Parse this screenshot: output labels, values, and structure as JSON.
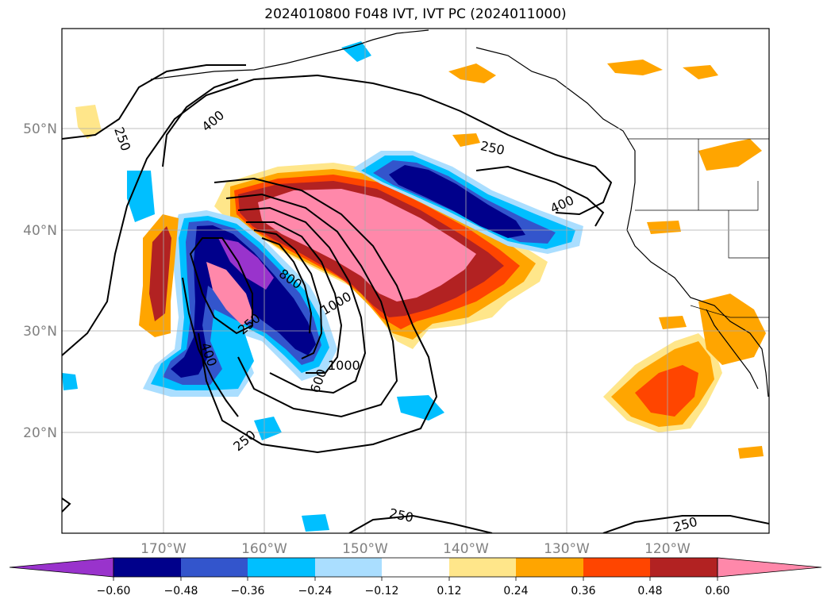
{
  "title": "2024010800 F048 IVT, IVT PC (2024011000)",
  "lat_labels": [
    "50°N",
    "40°N",
    "30°N",
    "20°N"
  ],
  "lon_labels": [
    "170°W",
    "160°W",
    "150°W",
    "140°W",
    "130°W",
    "120°W"
  ],
  "contour_labels": [
    "250",
    "400",
    "250",
    "400",
    "800",
    "1000",
    "250",
    "400",
    "600",
    "1000",
    "250",
    "250",
    "250"
  ],
  "colorbar": {
    "ticks": [
      "−0.60",
      "−0.48",
      "−0.36",
      "−0.24",
      "−0.12",
      "0.12",
      "0.24",
      "0.36",
      "0.48",
      "0.60"
    ],
    "colors": [
      "#9933cc",
      "#00008b",
      "#3355cc",
      "#00bfff",
      "#aadeff",
      "#ffffff",
      "#ffe68a",
      "#ffa500",
      "#ff4500",
      "#b22222",
      "#ff88aa"
    ]
  },
  "palette": {
    "neg_strong": "#00008b",
    "neg_mid": "#3355cc",
    "neg_light": "#00bfff",
    "neg_faint": "#aadeff",
    "pos_faint": "#ffe68a",
    "pos_light": "#ffa500",
    "pos_mid": "#ff4500",
    "pos_strong": "#b22222",
    "pos_max": "#ff88aa",
    "neg_max": "#9933cc"
  }
}
